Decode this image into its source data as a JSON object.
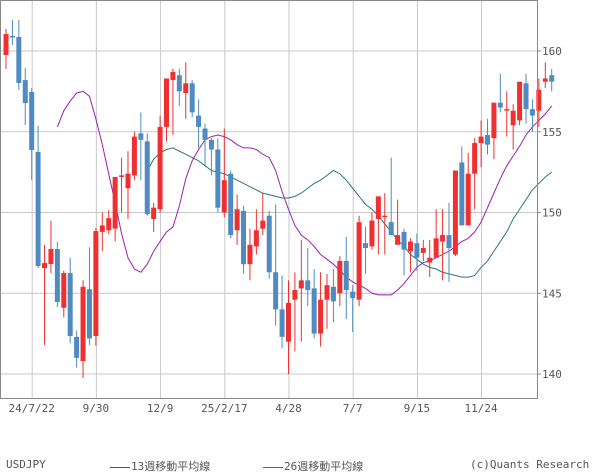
{
  "chart_data": {
    "type": "candlestick",
    "title": "",
    "symbol": "USDJPY",
    "ylim": [
      138.5,
      163.2
    ],
    "y_ticks": [
      140,
      145,
      150,
      155,
      160
    ],
    "x_tick_labels": [
      "24/7/22",
      "9/30",
      "12/9",
      "25/2/17",
      "4/28",
      "7/7",
      "9/15",
      "11/24"
    ],
    "x_tick_index": [
      4,
      14,
      24,
      34,
      44,
      54,
      64,
      74
    ],
    "colors": {
      "up": "#f03030",
      "down": "#4f8bc0",
      "ma13": "#9b1fb4",
      "ma26": "#2a7a72",
      "grid": "#c8c8c8",
      "axis": "#888888"
    },
    "legend": [
      {
        "label": "13週移動平均線",
        "color": "#9b1fb4"
      },
      {
        "label": "26週移動平均線",
        "color": "#2a7a72"
      }
    ],
    "candles": [
      [
        159.75,
        161.36,
        158.89,
        161.05
      ],
      [
        160.93,
        161.92,
        160.37,
        160.87
      ],
      [
        160.87,
        161.92,
        157.59,
        158.02
      ],
      [
        158.2,
        158.95,
        155.42,
        156.78
      ],
      [
        157.46,
        157.71,
        152.01,
        153.87
      ],
      [
        153.75,
        155.36,
        146.56,
        146.69
      ],
      [
        146.56,
        148.0,
        141.8,
        146.87
      ],
      [
        146.81,
        149.5,
        146.25,
        147.74
      ],
      [
        147.74,
        148.2,
        144.15,
        144.46
      ],
      [
        144.1,
        146.4,
        143.5,
        146.25
      ],
      [
        146.25,
        147.2,
        141.9,
        142.35
      ],
      [
        142.3,
        142.7,
        140.4,
        141.0
      ],
      [
        140.8,
        145.8,
        139.75,
        145.4
      ],
      [
        145.25,
        147.85,
        141.8,
        142.2
      ],
      [
        142.35,
        149.05,
        141.75,
        148.85
      ],
      [
        148.8,
        150.0,
        147.6,
        149.2
      ],
      [
        148.9,
        150.15,
        148.65,
        149.65
      ],
      [
        149.0,
        151.8,
        148.2,
        152.2
      ],
      [
        152.2,
        153.4,
        150.0,
        152.3
      ],
      [
        151.5,
        153.8,
        149.6,
        152.4
      ],
      [
        152.3,
        155.0,
        152.0,
        154.7
      ],
      [
        154.9,
        156.2,
        152.0,
        154.5
      ],
      [
        154.4,
        154.9,
        149.8,
        149.9
      ],
      [
        149.6,
        150.6,
        148.8,
        150.3
      ],
      [
        150.2,
        156.0,
        150.0,
        155.3
      ],
      [
        155.3,
        158.0,
        154.4,
        158.3
      ],
      [
        158.2,
        158.9,
        154.8,
        158.7
      ],
      [
        158.5,
        158.9,
        156.6,
        157.5
      ],
      [
        157.4,
        159.3,
        155.8,
        158.0
      ],
      [
        158.0,
        158.2,
        155.9,
        156.2
      ],
      [
        156.0,
        157.0,
        154.0,
        155.3
      ],
      [
        155.2,
        155.5,
        152.9,
        154.5
      ],
      [
        154.5,
        154.6,
        152.3,
        153.9
      ],
      [
        153.9,
        154.6,
        150.0,
        150.3
      ],
      [
        150.0,
        155.2,
        149.7,
        152.0
      ],
      [
        152.4,
        152.6,
        148.4,
        148.6
      ],
      [
        148.9,
        151.1,
        148.0,
        150.2
      ],
      [
        150.1,
        150.4,
        146.2,
        146.8
      ],
      [
        146.8,
        149.0,
        145.8,
        148.0
      ],
      [
        147.9,
        150.2,
        147.4,
        148.9
      ],
      [
        149.0,
        151.2,
        148.6,
        149.5
      ],
      [
        149.8,
        150.1,
        145.9,
        146.3
      ],
      [
        146.3,
        150.5,
        143.0,
        144.0
      ],
      [
        144.0,
        146.1,
        141.6,
        142.3
      ],
      [
        142.0,
        145.8,
        140.0,
        144.4
      ],
      [
        144.6,
        146.3,
        141.4,
        145.2
      ],
      [
        145.3,
        148.3,
        142.0,
        145.8
      ],
      [
        145.8,
        147.8,
        144.2,
        145.2
      ],
      [
        145.3,
        146.5,
        142.2,
        142.5
      ],
      [
        142.5,
        146.3,
        141.7,
        144.6
      ],
      [
        144.6,
        146.2,
        142.8,
        145.5
      ],
      [
        145.4,
        146.5,
        143.2,
        144.5
      ],
      [
        145.0,
        147.3,
        144.2,
        147.0
      ],
      [
        147.0,
        148.5,
        143.4,
        145.2
      ],
      [
        145.1,
        145.5,
        142.6,
        144.7
      ],
      [
        144.6,
        149.8,
        144.2,
        149.4
      ],
      [
        148.1,
        149.1,
        146.2,
        147.8
      ],
      [
        147.9,
        150.0,
        147.7,
        149.5
      ],
      [
        149.6,
        150.8,
        147.4,
        151.0
      ],
      [
        149.8,
        151.2,
        147.4,
        149.8
      ],
      [
        149.4,
        153.4,
        149.0,
        148.6
      ],
      [
        148.0,
        150.8,
        148.0,
        148.6
      ],
      [
        148.8,
        149.0,
        146.1,
        147.7
      ],
      [
        147.6,
        148.4,
        146.3,
        148.2
      ],
      [
        148.1,
        148.7,
        146.4,
        147.2
      ],
      [
        147.5,
        148.3,
        147.0,
        147.8
      ],
      [
        146.9,
        148.3,
        146.0,
        147.2
      ],
      [
        147.2,
        150.2,
        147.2,
        148.4
      ],
      [
        148.2,
        150.2,
        145.8,
        148.6
      ],
      [
        148.6,
        150.6,
        145.7,
        147.8
      ],
      [
        147.4,
        151.2,
        147.3,
        152.6
      ],
      [
        153.1,
        154.1,
        149.4,
        149.2
      ],
      [
        149.2,
        153.7,
        149.2,
        152.4
      ],
      [
        152.4,
        154.6,
        150.2,
        154.3
      ],
      [
        154.3,
        155.7,
        152.8,
        154.7
      ],
      [
        154.8,
        155.8,
        153.6,
        154.2
      ],
      [
        154.6,
        156.2,
        153.3,
        156.8
      ],
      [
        156.8,
        158.6,
        156.2,
        156.5
      ],
      [
        156.4,
        157.5,
        154.7,
        156.4
      ],
      [
        155.4,
        156.7,
        153.9,
        156.3
      ],
      [
        155.7,
        157.1,
        155.4,
        158.1
      ],
      [
        158.0,
        158.6,
        155.5,
        156.4
      ],
      [
        156.4,
        157.0,
        155.0,
        156.0
      ],
      [
        156.3,
        158.3,
        155.3,
        157.6
      ],
      [
        158.1,
        159.3,
        157.7,
        158.3
      ],
      [
        158.5,
        158.9,
        157.5,
        158.1
      ]
    ],
    "ma13": [
      155.3,
      156.3,
      156.9,
      157.4,
      157.5,
      157.2,
      155.8,
      154.2,
      152.4,
      150.6,
      148.7,
      147.2,
      146.5,
      146.3,
      146.8,
      147.6,
      148.2,
      148.8,
      149.1,
      150.4,
      152.1,
      153.2,
      153.9,
      154.5,
      154.7,
      154.8,
      154.7,
      154.5,
      154.2,
      154.0,
      154.0,
      153.9,
      153.6,
      153.4,
      152.6,
      151.3,
      150.2,
      149.2,
      148.6,
      148.3,
      147.9,
      147.4,
      147.1,
      146.8,
      146.4,
      146.0,
      145.7,
      145.5,
      145.3,
      145.0,
      144.9,
      144.9,
      144.9,
      145.2,
      145.6,
      146.1,
      146.6,
      146.9,
      147.0,
      147.2,
      147.4,
      147.6,
      147.9,
      148.2,
      148.4,
      148.8,
      149.4,
      150.3,
      151.2,
      152.1,
      152.9,
      153.5,
      154.1,
      154.8,
      155.3,
      155.7,
      156.1,
      156.6
    ],
    "ma26": [
      152.6,
      153.3,
      153.7,
      153.9,
      154.0,
      153.8,
      153.6,
      153.4,
      153.2,
      152.9,
      152.6,
      152.5,
      152.4,
      152.2,
      152.0,
      151.8,
      151.6,
      151.4,
      151.2,
      151.1,
      151.0,
      150.9,
      150.9,
      151.0,
      151.2,
      151.5,
      151.8,
      152.0,
      152.3,
      152.6,
      152.4,
      152.0,
      151.5,
      151.0,
      150.5,
      150.2,
      149.8,
      149.3,
      148.8,
      148.3,
      147.9,
      147.4,
      147.1,
      146.8,
      146.6,
      146.5,
      146.3,
      146.2,
      146.1,
      146.0,
      146.0,
      146.1,
      146.6,
      147.0,
      147.6,
      148.2,
      148.8,
      149.6,
      150.2,
      150.8,
      151.4,
      151.8,
      152.2,
      152.5
    ]
  },
  "footer": {
    "symbol_label": "USDJPY",
    "ma13_label": "13週移動平均線",
    "ma26_label": "26週移動平均線",
    "credit": "(c)Quants Research"
  }
}
